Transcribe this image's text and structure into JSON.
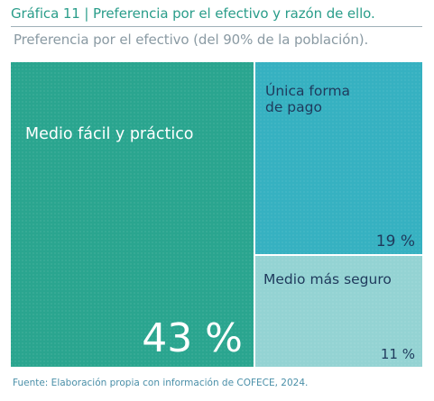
{
  "chart_data": {
    "type": "treemap",
    "title": "Gráfica 11 | Preferencia por el efectivo y razón de ello.",
    "subtitle": "Preferencia por el efectivo (del 90% de la población).",
    "source": "Fuente: Elaboración propia con información de COFECE, 2024.",
    "unit": "%",
    "items": [
      {
        "label": "Medio fácil y práctico",
        "value": 43,
        "value_label": "43 %",
        "color": "#2aa58f"
      },
      {
        "label": "Única forma de pago",
        "label_lines": [
          "Única forma",
          "de pago"
        ],
        "value": 19,
        "value_label": "19 %",
        "color": "#36b1c1"
      },
      {
        "label": "Medio más seguro",
        "value": 11,
        "value_label": "11 %",
        "color": "#94d3d3"
      }
    ]
  }
}
